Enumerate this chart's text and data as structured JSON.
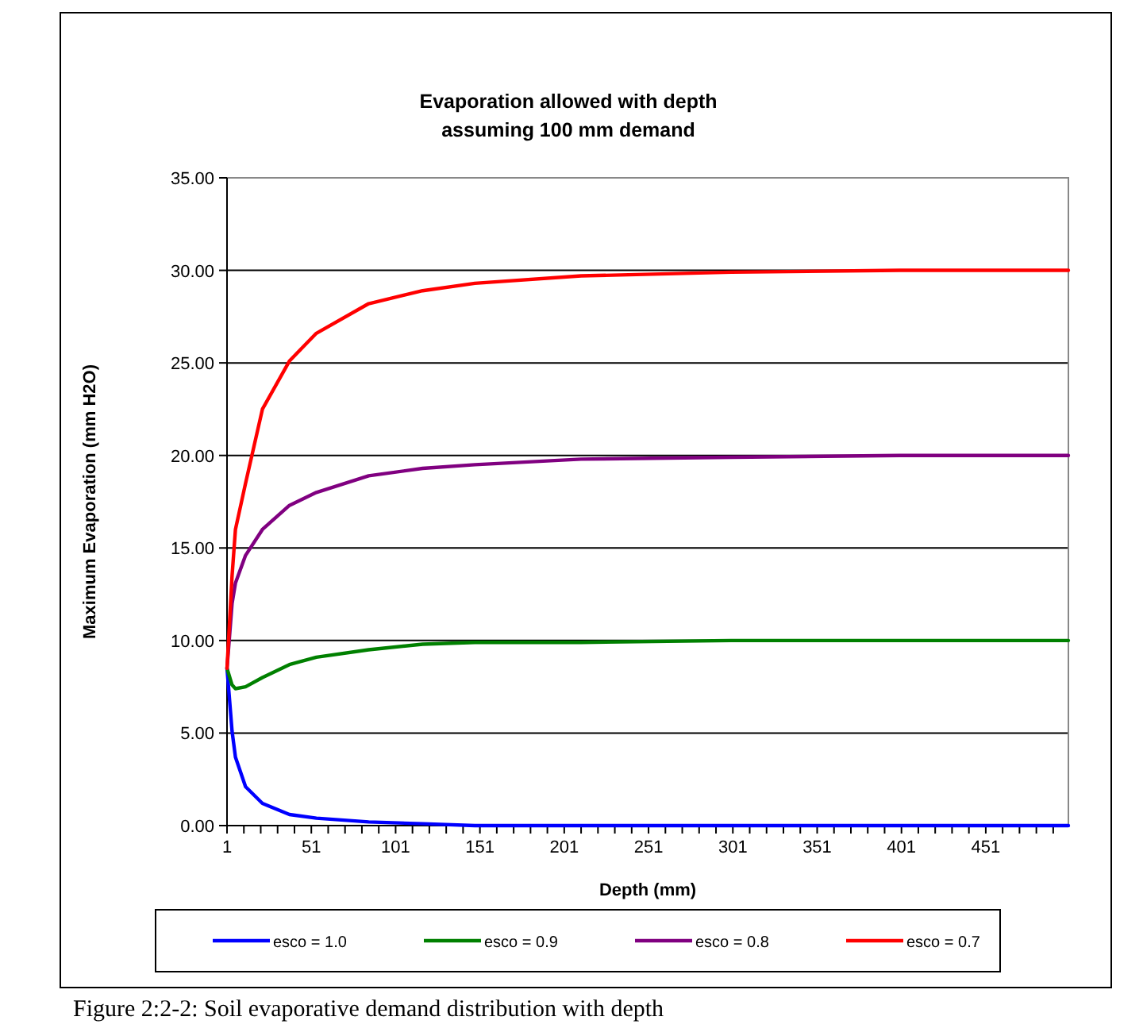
{
  "chart_data": {
    "type": "line",
    "title": "Evaporation allowed with depth\nassuming 100 mm demand",
    "xlabel": "Depth (mm)",
    "ylabel": "Maximum Evaporation (mm H2O)",
    "annotations": [
      "Figure 2:2-2: Soil evaporative demand distribution with depth"
    ],
    "x": [
      1,
      4,
      6,
      12,
      22,
      38,
      54,
      85,
      117,
      148,
      211,
      300,
      400,
      500
    ],
    "series": [
      {
        "name": "esco = 1.0",
        "color": "#0000ff",
        "values": [
          8.5,
          5.1,
          3.7,
          2.1,
          1.2,
          0.6,
          0.4,
          0.2,
          0.1,
          0,
          0,
          0,
          0,
          0
        ]
      },
      {
        "name": "esco = 0.9",
        "color": "#008000",
        "values": [
          8.5,
          7.6,
          7.4,
          7.5,
          8.0,
          8.7,
          9.1,
          9.5,
          9.8,
          9.9,
          9.9,
          10,
          10,
          10
        ]
      },
      {
        "name": "esco = 0.8",
        "color": "#800080",
        "values": [
          8.5,
          12.0,
          13.1,
          14.6,
          16.0,
          17.3,
          18.0,
          18.9,
          19.3,
          19.5,
          19.8,
          19.9,
          20,
          20
        ]
      },
      {
        "name": "esco = 0.7",
        "color": "#ff0000",
        "values": [
          8.5,
          13.5,
          16.0,
          18.5,
          22.5,
          25.1,
          26.6,
          28.2,
          28.9,
          29.3,
          29.7,
          29.9,
          30,
          30
        ]
      }
    ],
    "xlim": [
      1,
      500
    ],
    "xticks": [
      1,
      {
        "value": 11,
        "label": null
      },
      {
        "value": 21,
        "label": null
      },
      {
        "value": 31,
        "label": null
      },
      {
        "value": 41,
        "label": null
      },
      51,
      {
        "value": 61,
        "label": null
      },
      {
        "value": 71,
        "label": null
      },
      {
        "value": 81,
        "label": null
      },
      {
        "value": 91,
        "label": null
      },
      101,
      {
        "value": 111,
        "label": null
      },
      {
        "value": 121,
        "label": null
      },
      {
        "value": 131,
        "label": null
      },
      {
        "value": 141,
        "label": null
      },
      151,
      {
        "value": 161,
        "label": null
      },
      {
        "value": 171,
        "label": null
      },
      {
        "value": 181,
        "label": null
      },
      {
        "value": 191,
        "label": null
      },
      201,
      {
        "value": 211,
        "label": null
      },
      {
        "value": 221,
        "label": null
      },
      {
        "value": 231,
        "label": null
      },
      {
        "value": 241,
        "label": null
      },
      251,
      {
        "value": 261,
        "label": null
      },
      {
        "value": 271,
        "label": null
      },
      {
        "value": 281,
        "label": null
      },
      {
        "value": 291,
        "label": null
      },
      301,
      {
        "value": 311,
        "label": null
      },
      {
        "value": 321,
        "label": null
      },
      {
        "value": 331,
        "label": null
      },
      {
        "value": 341,
        "label": null
      },
      351,
      {
        "value": 361,
        "label": null
      },
      {
        "value": 371,
        "label": null
      },
      {
        "value": 381,
        "label": null
      },
      {
        "value": 391,
        "label": null
      },
      401,
      {
        "value": 411,
        "label": null
      },
      {
        "value": 421,
        "label": null
      },
      {
        "value": 431,
        "label": null
      },
      {
        "value": 441,
        "label": null
      },
      451,
      {
        "value": 461,
        "label": null
      },
      {
        "value": 471,
        "label": null
      },
      {
        "value": 481,
        "label": null
      },
      {
        "value": 491,
        "label": null
      }
    ],
    "ylim": [
      0,
      35
    ],
    "yticks": [
      {
        "value": 0,
        "label": "0.00"
      },
      {
        "value": 5,
        "label": "5.00"
      },
      {
        "value": 10,
        "label": "10.00"
      },
      {
        "value": 15,
        "label": "15.00"
      },
      {
        "value": 20,
        "label": "20.00"
      },
      {
        "value": 25,
        "label": "25.00"
      },
      {
        "value": 30,
        "label": "30.00"
      },
      {
        "value": 35,
        "label": "35.00"
      }
    ],
    "grid": "y",
    "legend": "bottom",
    "marker": "none",
    "line_style": "solid"
  }
}
